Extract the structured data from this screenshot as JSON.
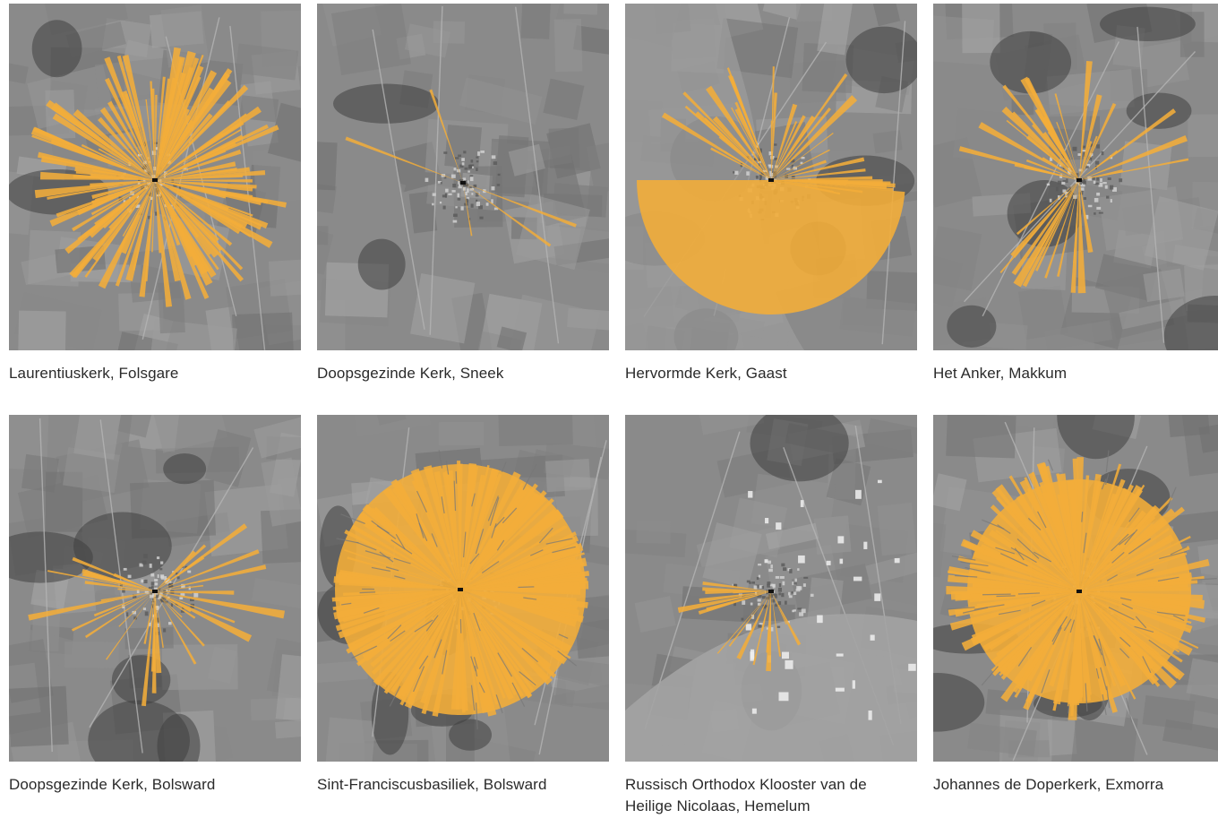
{
  "colors": {
    "viewshed": "#f2ad3a",
    "terrain_base": "#8a8a8a",
    "terrain_dark": "#3f3f3f",
    "terrain_light": "#b4b4b4",
    "water": "#9a9a9a"
  },
  "panels": [
    {
      "caption": "Laurentiuskerk, Folsgare",
      "pattern": "dense-radial"
    },
    {
      "caption": "Doopsgezinde Kerk, Sneek",
      "pattern": "sparse-slivers"
    },
    {
      "caption": "Hervormde Kerk, Gaast",
      "pattern": "west-fan-over-water"
    },
    {
      "caption": "Het Anker, Makkum",
      "pattern": "partial-radial"
    },
    {
      "caption": "Doopsgezinde Kerk, Bolsward",
      "pattern": "partial-radial"
    },
    {
      "caption": "Sint-Franciscusbasiliek, Bolsward",
      "pattern": "full-circle"
    },
    {
      "caption": "Russisch Orthodox Klooster van de Heilige Nicolaas, Hemelum",
      "pattern": "west-fan-small"
    },
    {
      "caption": "Johannes de Doperkerk, Exmorra",
      "pattern": "full-circle-dense"
    }
  ]
}
